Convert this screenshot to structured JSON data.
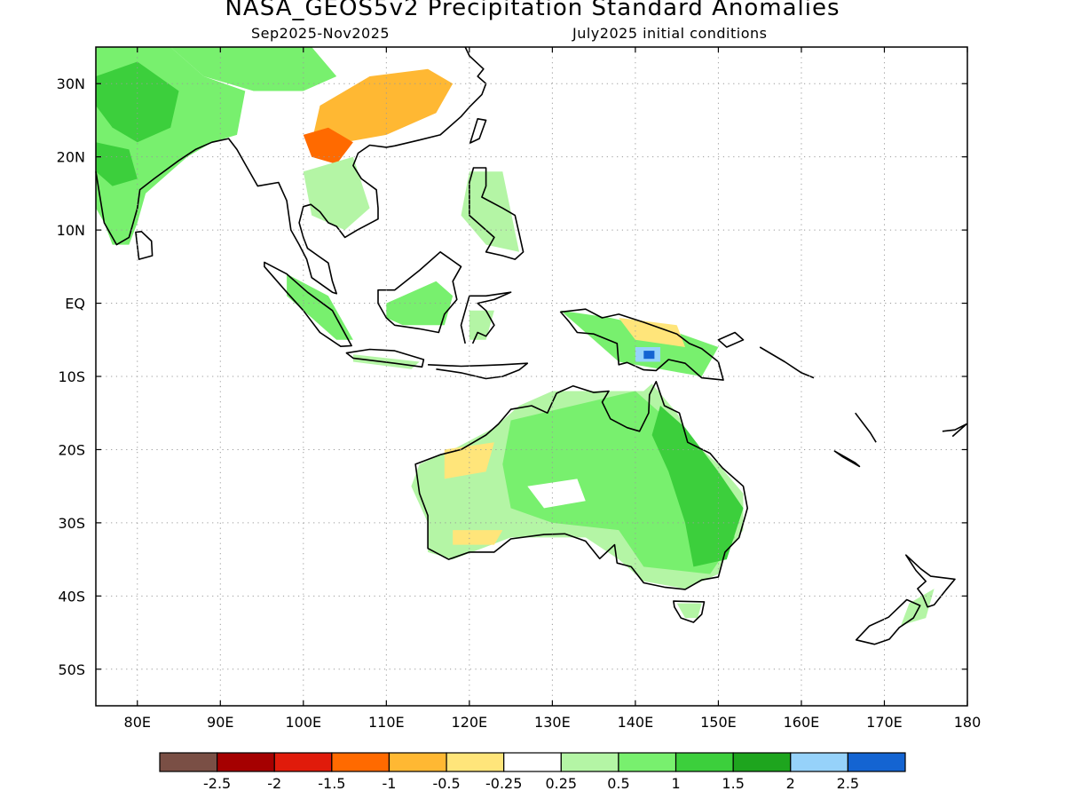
{
  "header": {
    "title": "NASA_GEOS5v2 Precipitation Standard Anomalies",
    "period": "Sep2025-Nov2025",
    "init": "July2025 initial conditions"
  },
  "map": {
    "lon_range": [
      75,
      180
    ],
    "lat_range": [
      -55,
      35
    ],
    "lon_ticks": [
      {
        "value": 80,
        "label": "80E"
      },
      {
        "value": 90,
        "label": "90E"
      },
      {
        "value": 100,
        "label": "100E"
      },
      {
        "value": 110,
        "label": "110E"
      },
      {
        "value": 120,
        "label": "120E"
      },
      {
        "value": 130,
        "label": "130E"
      },
      {
        "value": 140,
        "label": "140E"
      },
      {
        "value": 150,
        "label": "150E"
      },
      {
        "value": 160,
        "label": "160E"
      },
      {
        "value": 170,
        "label": "170E"
      },
      {
        "value": 180,
        "label": "180"
      }
    ],
    "lat_ticks": [
      {
        "value": 30,
        "label": "30N"
      },
      {
        "value": 20,
        "label": "20N"
      },
      {
        "value": 10,
        "label": "10N"
      },
      {
        "value": 0,
        "label": "EQ"
      },
      {
        "value": -10,
        "label": "10S"
      },
      {
        "value": -20,
        "label": "20S"
      },
      {
        "value": -30,
        "label": "30S"
      },
      {
        "value": -40,
        "label": "40S"
      },
      {
        "value": -50,
        "label": "50S"
      }
    ],
    "grid": "dotted"
  },
  "colorbar": {
    "colors": [
      "#7a4f45",
      "#a50000",
      "#e01b0b",
      "#ff6a00",
      "#ffb833",
      "#ffe57a",
      "#ffffff",
      "#b4f5a5",
      "#78f06e",
      "#3ccf3c",
      "#1ea51e",
      "#96d2fa",
      "#1464d2"
    ],
    "labels": [
      "-2.5",
      "-2",
      "-1.5",
      "-1",
      "-0.5",
      "-0.25",
      "0.25",
      "0.5",
      "1",
      "1.5",
      "2",
      "2.5"
    ]
  },
  "anomaly_colors": {
    "green_light": "#b4f5a5",
    "green": "#78f06e",
    "green_dark": "#3ccf3c",
    "orange_light": "#ffe57a",
    "orange": "#ffb833",
    "red_orange": "#ff6a00",
    "blue_light": "#96d2fa",
    "blue": "#1464d2"
  }
}
